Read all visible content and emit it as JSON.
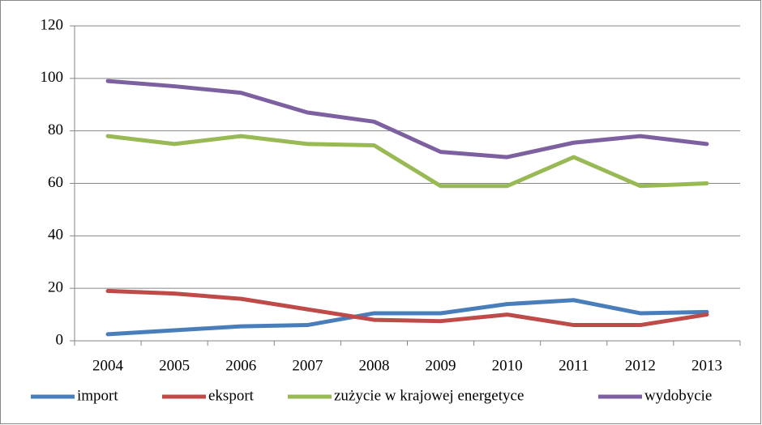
{
  "chart_data": {
    "type": "line",
    "categories": [
      "2004",
      "2005",
      "2006",
      "2007",
      "2008",
      "2009",
      "2010",
      "2011",
      "2012",
      "2013"
    ],
    "series": [
      {
        "name": "import",
        "color": "#4a7ebb",
        "values": [
          2.5,
          4,
          5.5,
          6,
          10.5,
          10.5,
          14,
          15.5,
          10.5,
          11
        ]
      },
      {
        "name": "eksport",
        "color": "#be4b48",
        "values": [
          19,
          18,
          16,
          12,
          8,
          7.5,
          10,
          6,
          6,
          10
        ]
      },
      {
        "name": "zużycie w krajowej energetyce",
        "color": "#98b954",
        "values": [
          78,
          75,
          78,
          75,
          74.5,
          59,
          59,
          70,
          59,
          60
        ]
      },
      {
        "name": "wydobycie",
        "color": "#7d60a0",
        "values": [
          99,
          97,
          94.5,
          87,
          83.5,
          72,
          70,
          75.5,
          78,
          75
        ]
      }
    ],
    "ylim": [
      0,
      120
    ],
    "yticks": [
      0,
      20,
      40,
      60,
      80,
      100,
      120
    ],
    "grid": true,
    "legend": "bottom"
  }
}
